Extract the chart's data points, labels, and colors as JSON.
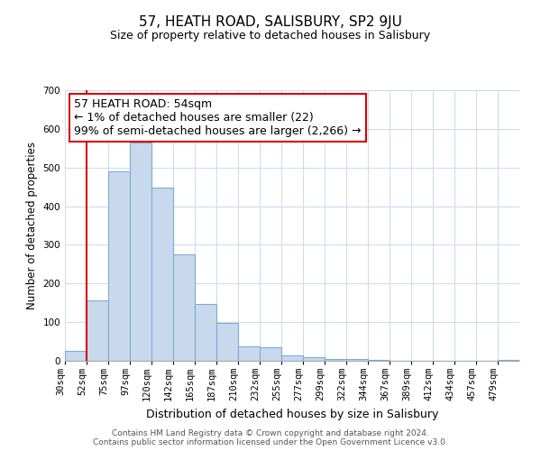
{
  "title": "57, HEATH ROAD, SALISBURY, SP2 9JU",
  "subtitle": "Size of property relative to detached houses in Salisbury",
  "xlabel": "Distribution of detached houses by size in Salisbury",
  "ylabel": "Number of detached properties",
  "bin_labels": [
    "30sqm",
    "52sqm",
    "75sqm",
    "97sqm",
    "120sqm",
    "142sqm",
    "165sqm",
    "187sqm",
    "210sqm",
    "232sqm",
    "255sqm",
    "277sqm",
    "299sqm",
    "322sqm",
    "344sqm",
    "367sqm",
    "389sqm",
    "412sqm",
    "434sqm",
    "457sqm",
    "479sqm"
  ],
  "bar_heights": [
    25,
    157,
    490,
    565,
    447,
    275,
    146,
    98,
    37,
    35,
    15,
    10,
    5,
    5,
    2,
    0,
    0,
    0,
    0,
    0,
    3
  ],
  "bar_face_color": "#c8d9ee",
  "bar_edge_color": "#7aadd4",
  "highlight_color": "#dd0000",
  "ylim": [
    0,
    700
  ],
  "yticks": [
    0,
    100,
    200,
    300,
    400,
    500,
    600,
    700
  ],
  "annotation_title": "57 HEATH ROAD: 54sqm",
  "annotation_line1": "← 1% of detached houses are smaller (22)",
  "annotation_line2": "99% of semi-detached houses are larger (2,266) →",
  "vline_x": 1,
  "footer_line1": "Contains HM Land Registry data © Crown copyright and database right 2024.",
  "footer_line2": "Contains public sector information licensed under the Open Government Licence v3.0.",
  "background_color": "#ffffff",
  "grid_color": "#ccddee",
  "title_fontsize": 11,
  "subtitle_fontsize": 9,
  "ylabel_fontsize": 8.5,
  "xlabel_fontsize": 9,
  "tick_fontsize": 7.5,
  "ann_fontsize": 9,
  "footer_fontsize": 6.5
}
